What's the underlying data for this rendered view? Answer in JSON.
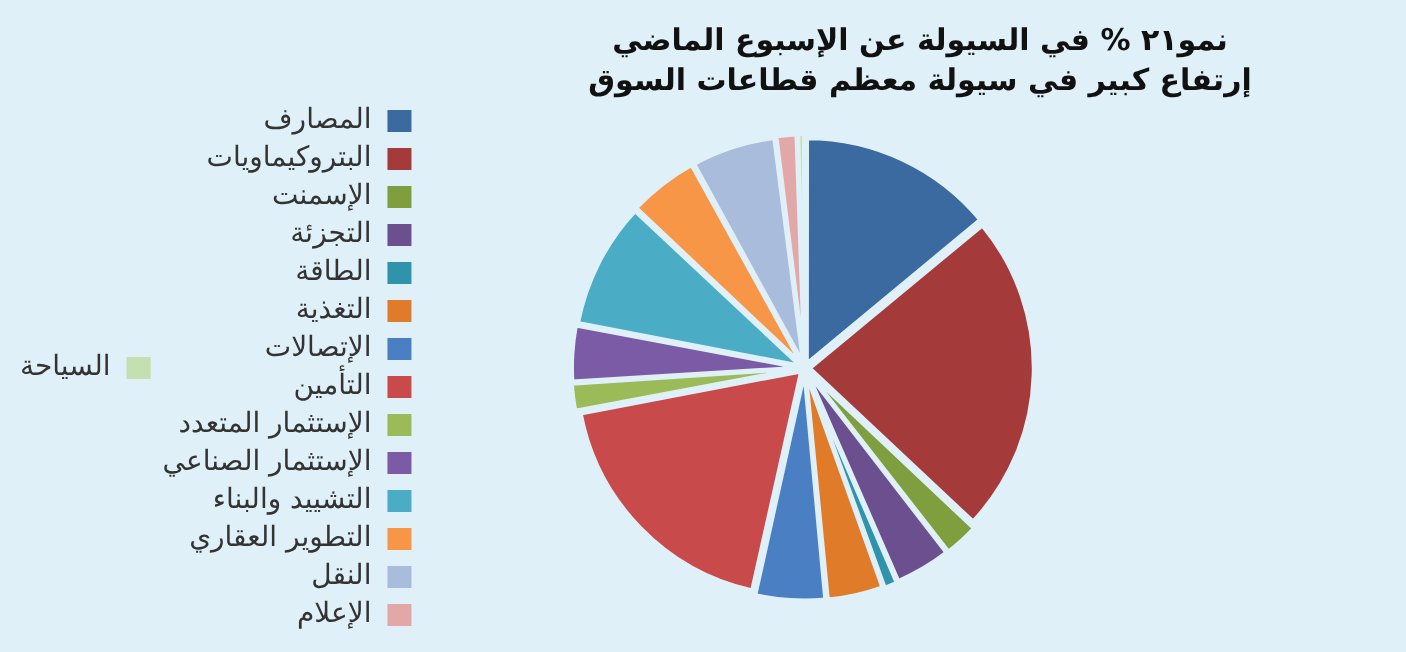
{
  "chart_data": {
    "type": "pie",
    "title": "نمو٢١ % في السيولة عن الإسبوع الماضي\nإرتفاع كبير في سيولة معظم قطاعات السوق",
    "categories": [
      "المصارف",
      "البتروكيماويات",
      "الإسمنت",
      "التجزئة",
      "الطاقة",
      "التغذية",
      "الإتصالات",
      "التأمين",
      "الإستثمار المتعدد",
      "الإستثمار الصناعي",
      "التشييد والبناء",
      "التطوير العقاري",
      "النقل",
      "الإعلام",
      "السياحة"
    ],
    "values": [
      14,
      23,
      2.5,
      4,
      1,
      4,
      5,
      18.5,
      2,
      4,
      9,
      5,
      6,
      1.5,
      0.5
    ],
    "colors": [
      "#3a6aa0",
      "#a53a3a",
      "#7f9e3e",
      "#6b4f8f",
      "#2f93ab",
      "#e07b2a",
      "#4a7fc4",
      "#c94a4a",
      "#9bbb59",
      "#7b5aa6",
      "#4bacc6",
      "#f79646",
      "#a9bcdc",
      "#e2a8a8",
      "#c4dfb0"
    ],
    "legend": "left"
  }
}
